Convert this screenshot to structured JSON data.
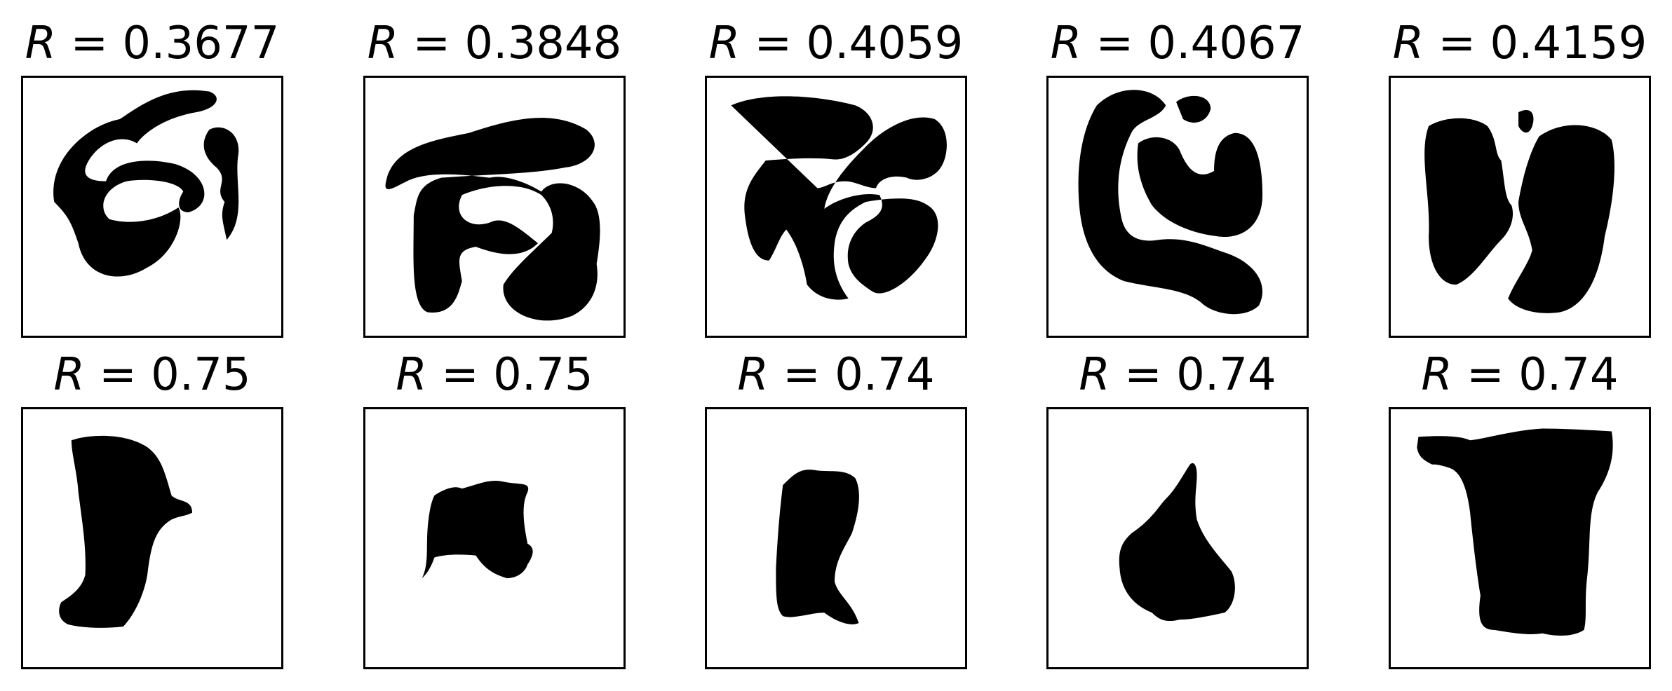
{
  "figure": {
    "rows": [
      {
        "panels": [
          {
            "variable": "R",
            "equals": " = ",
            "value": "0.3677"
          },
          {
            "variable": "R",
            "equals": " = ",
            "value": "0.3848"
          },
          {
            "variable": "R",
            "equals": " = ",
            "value": "0.4059"
          },
          {
            "variable": "R",
            "equals": " = ",
            "value": "0.4067"
          },
          {
            "variable": "R",
            "equals": " = ",
            "value": "0.4159"
          }
        ]
      },
      {
        "panels": [
          {
            "variable": "R",
            "equals": " = ",
            "value": "0.75"
          },
          {
            "variable": "R",
            "equals": " = ",
            "value": "0.75"
          },
          {
            "variable": "R",
            "equals": " = ",
            "value": "0.74"
          },
          {
            "variable": "R",
            "equals": " = ",
            "value": "0.74"
          },
          {
            "variable": "R",
            "equals": " = ",
            "value": "0.74"
          }
        ]
      }
    ],
    "colors": {
      "shape": "#000000",
      "background": "#ffffff",
      "frame": "#000000"
    }
  }
}
